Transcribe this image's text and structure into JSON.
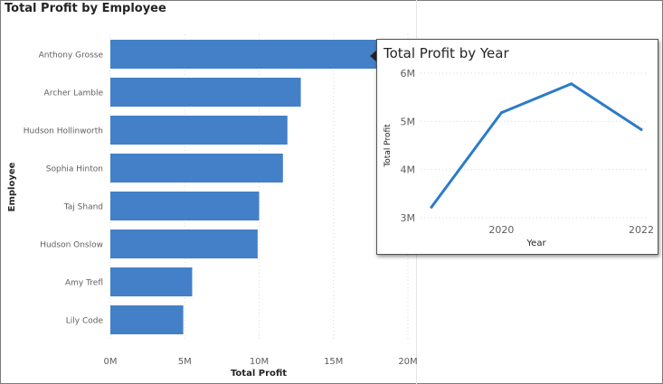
{
  "chart_data": [
    {
      "type": "bar",
      "orientation": "horizontal",
      "title": "Total Profit by Employee",
      "xlabel": "Total Profit",
      "ylabel": "Employee",
      "categories": [
        "Anthony Grosse",
        "Archer Lamble",
        "Hudson Hollinworth",
        "Sophia Hinton",
        "Taj Shand",
        "Hudson Onslow",
        "Amy Trefl",
        "Lily Code"
      ],
      "values": [
        18900000,
        12800000,
        11900000,
        11600000,
        10000000,
        9900000,
        5500000,
        4900000
      ],
      "x_ticks": [
        0,
        5000000,
        10000000,
        15000000,
        20000000
      ],
      "x_tick_labels": [
        "0M",
        "5M",
        "10M",
        "15M",
        "20M"
      ],
      "xlim": [
        0,
        20000000
      ],
      "grid": "vertical dotted",
      "color": "#4380c8"
    },
    {
      "type": "line",
      "title": "Total Profit by Year",
      "xlabel": "Year",
      "ylabel": "Total Profit",
      "x": [
        2019,
        2020,
        2021,
        2022
      ],
      "values": [
        3220000,
        5180000,
        5780000,
        4830000
      ],
      "x_ticks": [
        2020,
        2022
      ],
      "x_tick_labels": [
        "2020",
        "2022"
      ],
      "y_ticks": [
        3000000,
        4000000,
        5000000,
        6000000
      ],
      "y_tick_labels": [
        "3M",
        "4M",
        "5M",
        "6M"
      ],
      "ylim": [
        3000000,
        6000000
      ],
      "grid": "horizontal dotted",
      "color": "#2b7bc8"
    }
  ]
}
